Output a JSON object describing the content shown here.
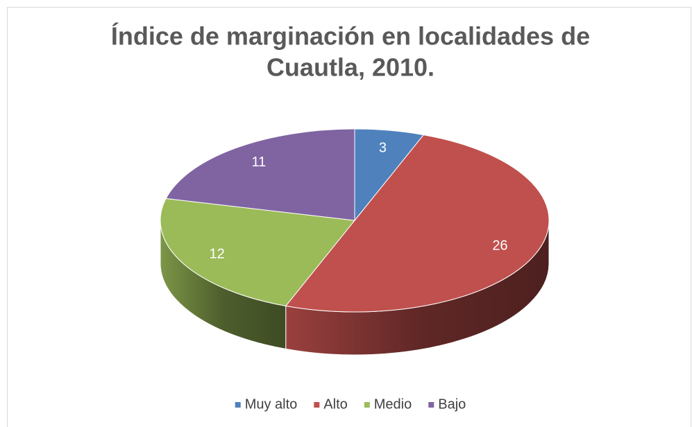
{
  "chart_data": {
    "type": "pie3d",
    "title": [
      "Índice de marginación en localidades de",
      "Cuautla, 2010."
    ],
    "categories": [
      "Muy alto",
      "Alto",
      "Medio",
      "Bajo"
    ],
    "values": [
      3,
      26,
      12,
      11
    ],
    "colors": [
      "#4f81bd",
      "#c0504d",
      "#9bbb59",
      "#8064a2"
    ],
    "legend": "bottom"
  }
}
